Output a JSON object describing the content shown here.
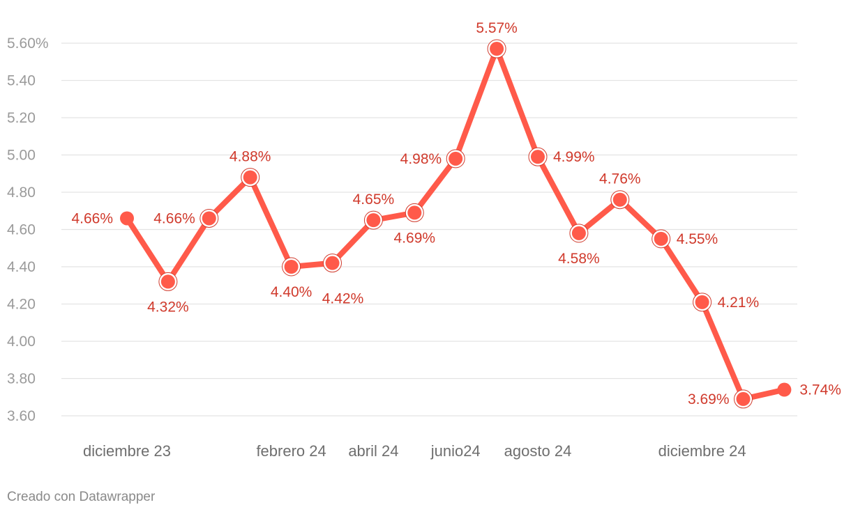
{
  "chart_data": {
    "type": "line",
    "x_labels": [
      "diciembre 23",
      "",
      "",
      "",
      "febrero 24",
      "",
      "abril 24",
      "",
      "junio24",
      "",
      "agosto 24",
      "",
      "",
      "",
      "diciembre 24",
      "",
      ""
    ],
    "values": [
      4.66,
      4.32,
      4.66,
      4.88,
      4.4,
      4.42,
      4.65,
      4.69,
      4.98,
      5.57,
      4.99,
      4.58,
      4.76,
      4.55,
      4.21,
      3.69,
      3.74
    ],
    "data_labels": [
      "4.66%",
      "4.32%",
      "4.66%",
      "4.88%",
      "4.40%",
      "4.42%",
      "4.65%",
      "4.69%",
      "4.98%",
      "5.57%",
      "4.99%",
      "4.58%",
      "4.76%",
      "4.55%",
      "4.21%",
      "3.69%",
      "3.74%"
    ],
    "y_ticks": [
      {
        "value": 3.6,
        "label": "3.60"
      },
      {
        "value": 3.8,
        "label": "3.80"
      },
      {
        "value": 4.0,
        "label": "4.00"
      },
      {
        "value": 4.2,
        "label": "4.20"
      },
      {
        "value": 4.4,
        "label": "4.40"
      },
      {
        "value": 4.6,
        "label": "4.60"
      },
      {
        "value": 4.8,
        "label": "4.80"
      },
      {
        "value": 5.0,
        "label": "5.00"
      },
      {
        "value": 5.2,
        "label": "5.20"
      },
      {
        "value": 5.4,
        "label": "5.40"
      },
      {
        "value": 5.6,
        "label": "5.60%"
      }
    ],
    "ylim": [
      3.6,
      5.6
    ],
    "grid": true,
    "legend": false,
    "title": "",
    "xlabel": "",
    "ylabel": "",
    "colors": {
      "line": "#ff5a4a",
      "label": "#d03a2c",
      "grid": "#e3e3e3",
      "tick": "#9a9a9a"
    }
  },
  "footer": {
    "credit": "Creado con Datawrapper"
  }
}
